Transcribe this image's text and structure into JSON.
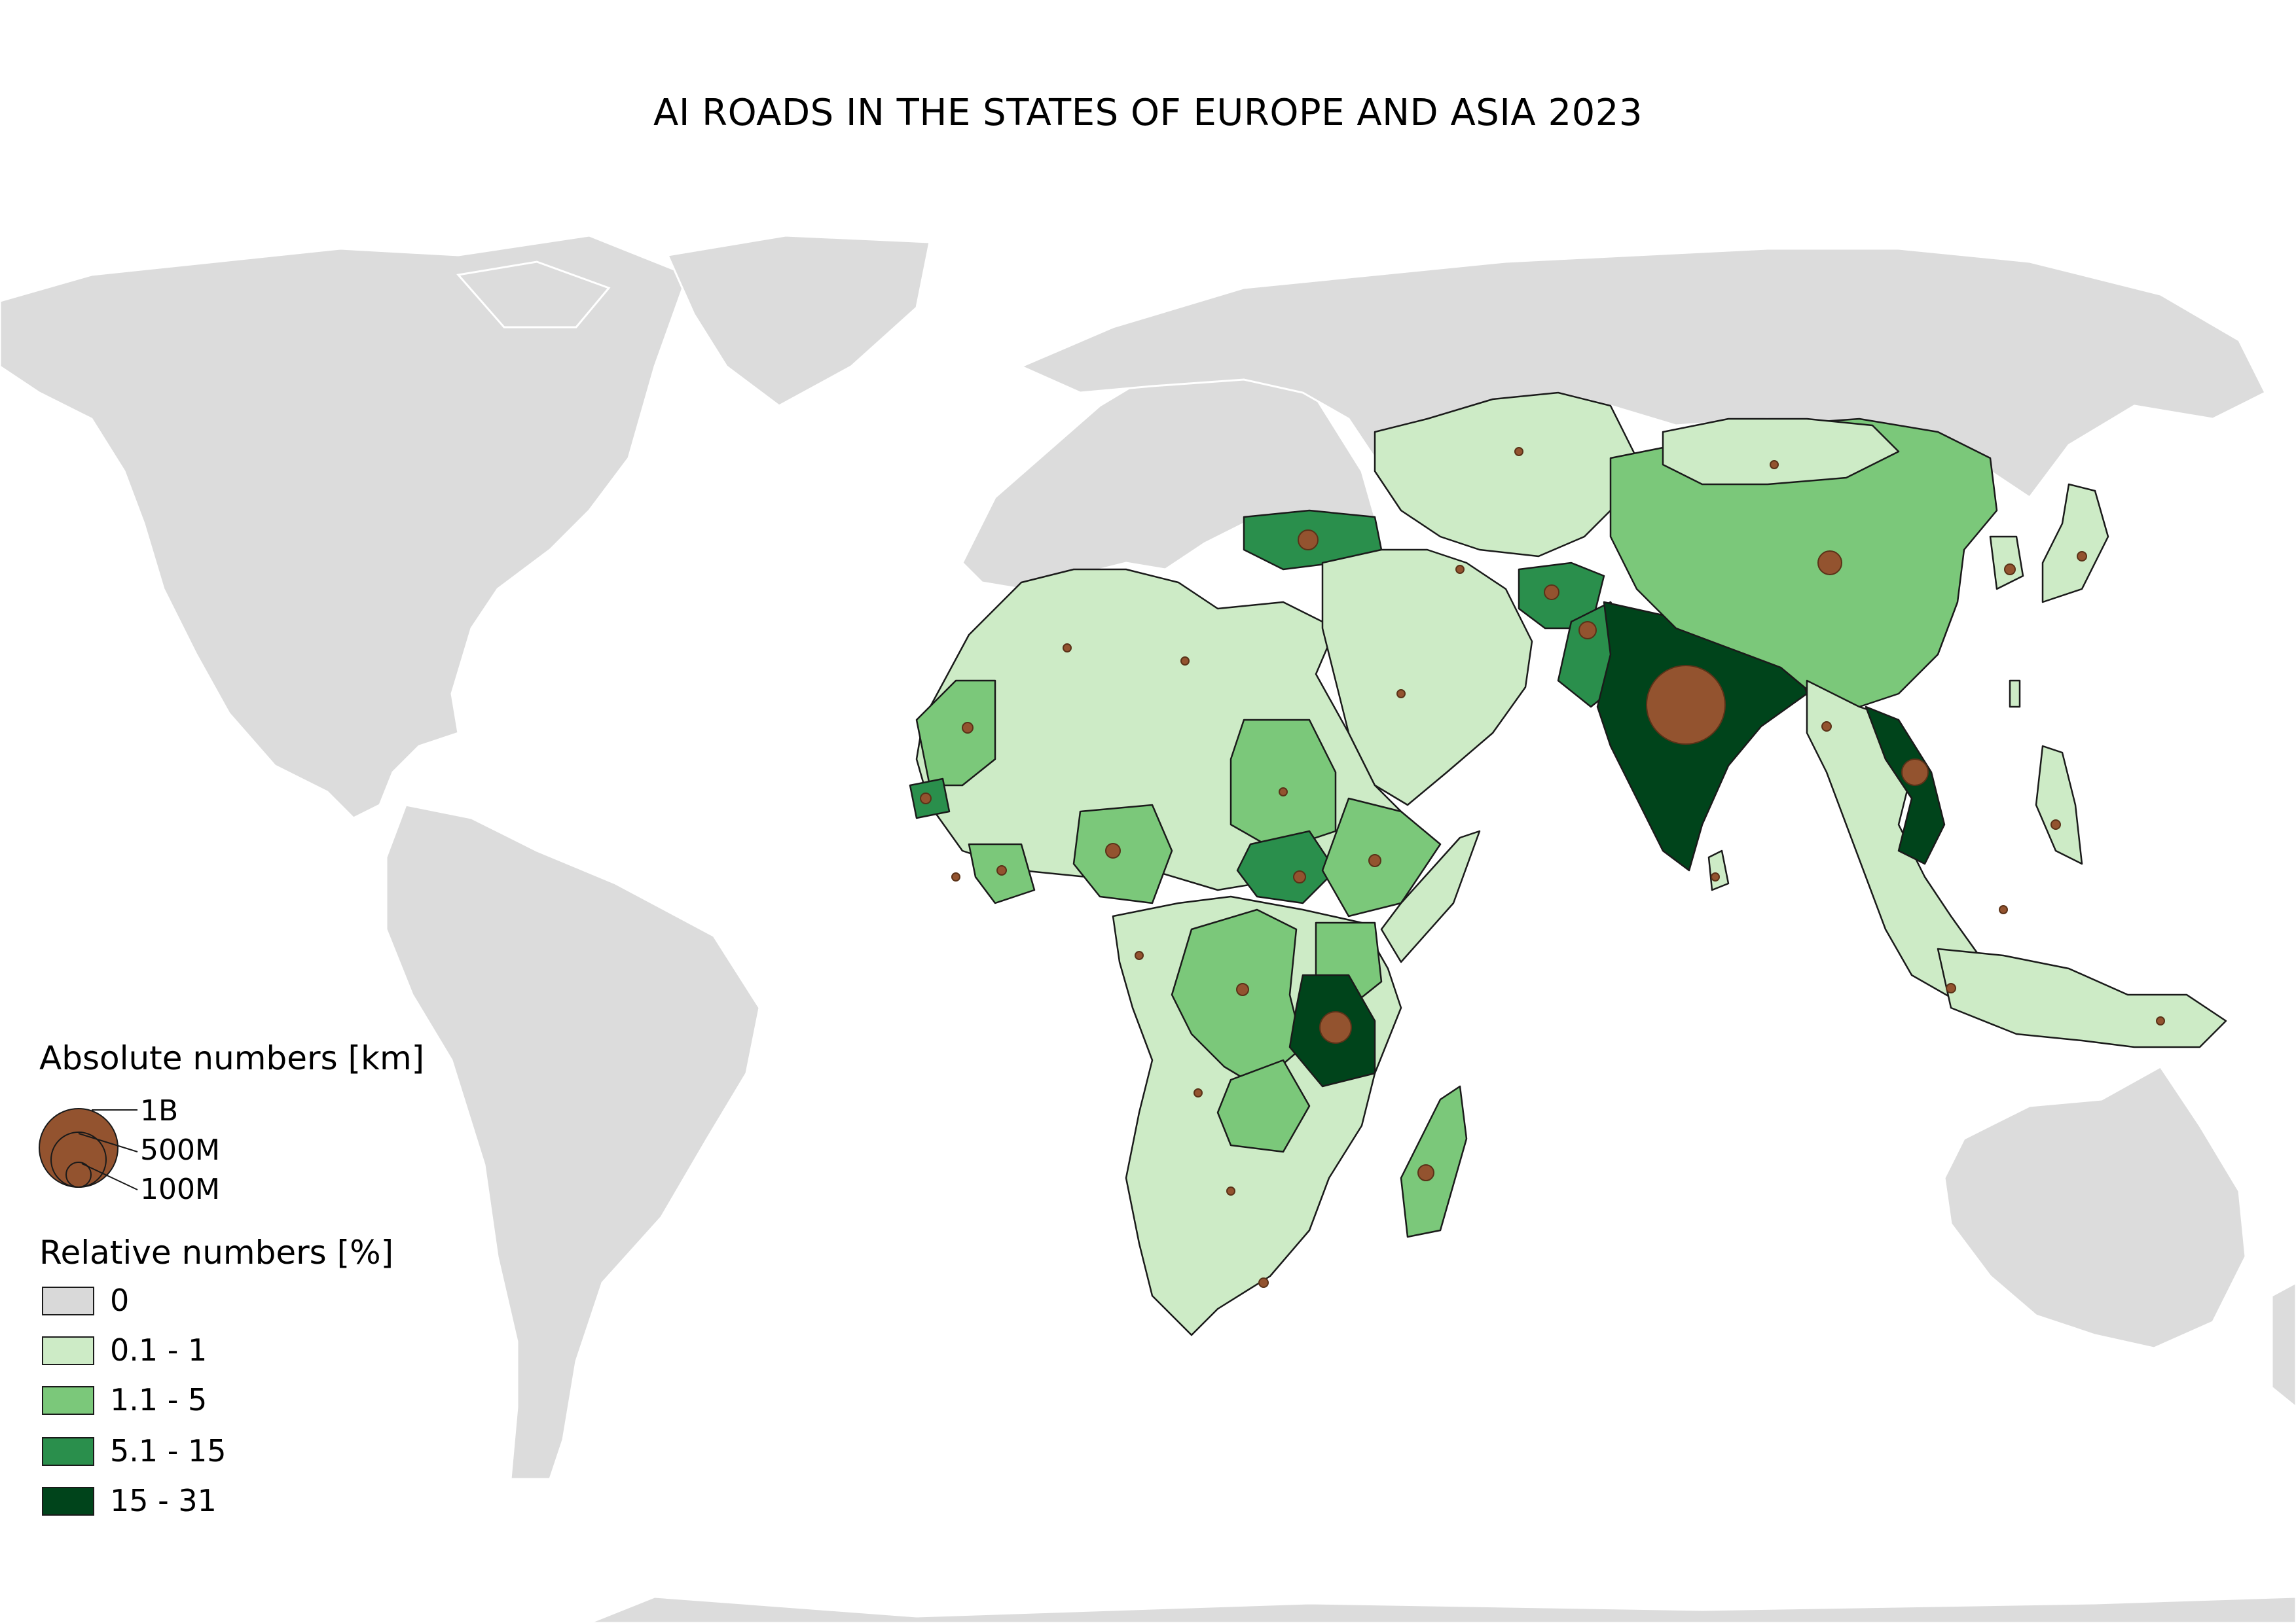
{
  "title": "AI ROADS IN THE STATES OF EUROPE AND ASIA 2023",
  "legend": {
    "absolute_heading": "Absolute numbers [km]",
    "size_labels": [
      "1B",
      "500M",
      "100M"
    ],
    "bubble_color": "#93532f",
    "relative_heading": "Relative numbers [%]",
    "classes": [
      {
        "label": "0",
        "color": "#d9d9d9"
      },
      {
        "label": "0.1 - 1",
        "color": "#cdebc6"
      },
      {
        "label": "1.1 - 5",
        "color": "#7bc87a"
      },
      {
        "label": "5.1 - 15",
        "color": "#2a8f4c"
      },
      {
        "label": "15 - 31",
        "color": "#00441b"
      }
    ]
  },
  "colors": {
    "no_data_land": "#dcdcdc",
    "border": "#1a1a1a",
    "background": "#ffffff"
  }
}
